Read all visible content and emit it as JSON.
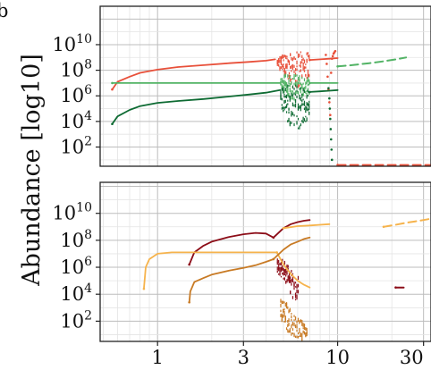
{
  "figure": {
    "panel_letter": "b",
    "ylabel": "Abundance [log10]"
  },
  "chart_data": [
    {
      "type": "scatter",
      "panel": "top",
      "ylabel": "Abundance [log10]",
      "x_scale": "log",
      "y_scale": "log10",
      "xlim": [
        0.48,
        33
      ],
      "ylim": [
        0.5,
        13
      ],
      "y_ticks": [
        2,
        4,
        6,
        8,
        10
      ],
      "y_tick_labels": [
        "10^2",
        "10^4",
        "10^6",
        "10^8",
        "10^10"
      ],
      "grid": true,
      "legend": "none",
      "colors": [
        "#e8503a",
        "#52b365",
        "#0e6b33"
      ],
      "series": [
        {
          "color": "#e8503a",
          "style": "line",
          "x": [
            0.56,
            0.6,
            0.7,
            0.8,
            1.0,
            1.3,
            1.8,
            2.5,
            3.2,
            4.0,
            4.5
          ],
          "y": [
            6.5,
            7.1,
            7.5,
            7.8,
            8.05,
            8.25,
            8.4,
            8.55,
            8.65,
            8.75,
            8.85
          ]
        },
        {
          "color": "#e8503a",
          "style": "chaotic",
          "x": [
            4.6,
            4.9,
            5.2,
            5.5,
            5.8,
            6.1,
            6.4,
            6.7,
            7.0
          ],
          "y_min": [
            8.3,
            7.8,
            7.5,
            6.8,
            6.2,
            6.8,
            7.2,
            7.4,
            7.6
          ],
          "y_max": [
            8.9,
            9.1,
            9.2,
            9.3,
            9.4,
            9.4,
            9.5,
            9.5,
            9.5
          ]
        },
        {
          "color": "#e8503a",
          "style": "line",
          "x": [
            7.0,
            8.0,
            9.0,
            10.0
          ],
          "y": [
            8.8,
            8.85,
            8.9,
            8.95
          ]
        },
        {
          "color": "#e8503a",
          "style": "dots",
          "x": [
            8.6,
            8.7,
            8.8,
            8.9,
            9.0,
            9.1,
            9.2,
            9.3,
            9.4,
            9.5,
            9.6,
            9.7
          ],
          "y": [
            9.2,
            8.5,
            7.5,
            6.5,
            5.5,
            4.5,
            7.8,
            8.9,
            9.1,
            9.3,
            9.4,
            9.5
          ]
        },
        {
          "color": "#e8503a",
          "style": "dash",
          "x": [
            10.0,
            33.0
          ],
          "y": [
            0.6,
            0.6
          ]
        },
        {
          "color": "#52b365",
          "style": "line",
          "x": [
            0.56,
            0.8,
            1.0,
            1.5,
            2.0,
            3.0,
            4.0,
            4.8
          ],
          "y": [
            7.0,
            7.0,
            7.0,
            7.0,
            7.0,
            7.0,
            7.0,
            7.0
          ]
        },
        {
          "color": "#52b365",
          "style": "chaotic",
          "x": [
            4.8,
            5.1,
            5.4,
            5.7,
            6.0,
            6.3,
            6.6,
            7.0
          ],
          "y_min": [
            6.8,
            6.2,
            5.8,
            5.6,
            5.9,
            6.0,
            6.1,
            6.2
          ],
          "y_max": [
            7.3,
            7.6,
            7.7,
            7.7,
            7.6,
            7.5,
            7.4,
            7.3
          ]
        },
        {
          "color": "#52b365",
          "style": "line",
          "x": [
            7.0,
            8.0,
            9.0,
            10.0
          ],
          "y": [
            7.0,
            7.0,
            7.0,
            7.0
          ]
        },
        {
          "color": "#52b365",
          "style": "dash",
          "x": [
            10.0,
            12.0,
            15.0,
            18.0,
            21.0,
            24.0
          ],
          "y": [
            8.3,
            8.4,
            8.55,
            8.7,
            8.85,
            9.0
          ]
        },
        {
          "color": "#0e6b33",
          "style": "line",
          "x": [
            0.56,
            0.6,
            0.7,
            0.8,
            1.0,
            1.3,
            1.8,
            2.5,
            3.2,
            4.0,
            4.8
          ],
          "y": [
            3.8,
            4.4,
            4.9,
            5.2,
            5.45,
            5.6,
            5.75,
            5.95,
            6.1,
            6.25,
            6.45
          ]
        },
        {
          "color": "#0e6b33",
          "style": "chaotic",
          "x": [
            4.8,
            5.1,
            5.4,
            5.7,
            6.0,
            6.3,
            6.6,
            7.0
          ],
          "y_min": [
            5.2,
            4.2,
            3.6,
            3.2,
            3.4,
            3.6,
            4.0,
            4.2
          ],
          "y_max": [
            6.6,
            6.8,
            6.9,
            6.9,
            6.8,
            6.7,
            6.6,
            6.5
          ]
        },
        {
          "color": "#0e6b33",
          "style": "line",
          "x": [
            7.0,
            8.0,
            9.0,
            10.0
          ],
          "y": [
            6.3,
            6.35,
            6.4,
            6.45
          ]
        },
        {
          "color": "#0e6b33",
          "style": "dots",
          "x": [
            8.9,
            9.0,
            9.05,
            9.1,
            9.15,
            9.2,
            9.25,
            9.3
          ],
          "y": [
            6.6,
            5.8,
            5.0,
            4.2,
            3.4,
            2.6,
            1.8,
            1.0
          ]
        }
      ]
    },
    {
      "type": "scatter",
      "panel": "bottom",
      "x_scale": "log",
      "y_scale": "log10",
      "xlim": [
        0.48,
        33
      ],
      "ylim": [
        0.5,
        12.3
      ],
      "x_ticks": [
        1,
        3,
        10,
        30
      ],
      "x_tick_labels": [
        "1",
        "3",
        "10",
        "30"
      ],
      "y_ticks": [
        2,
        4,
        6,
        8,
        10
      ],
      "y_tick_labels": [
        "10^2",
        "10^4",
        "10^6",
        "10^8",
        "10^10"
      ],
      "grid": true,
      "legend": "none",
      "colors": [
        "#8c0d18",
        "#f6b34c",
        "#c87a24"
      ],
      "series": [
        {
          "color": "#8c0d18",
          "style": "line",
          "x": [
            1.5,
            1.6,
            1.8,
            2.0,
            2.5,
            3.0,
            3.5,
            4.0,
            4.4
          ],
          "y": [
            6.2,
            7.1,
            7.6,
            7.9,
            8.25,
            8.45,
            8.55,
            8.5,
            8.2
          ]
        },
        {
          "color": "#8c0d18",
          "style": "line",
          "x": [
            4.4,
            5.0,
            5.5,
            6.0,
            6.5,
            7.0
          ],
          "y": [
            8.2,
            8.9,
            9.2,
            9.35,
            9.45,
            9.5
          ]
        },
        {
          "color": "#8c0d18",
          "style": "chaotic",
          "x": [
            4.6,
            4.9,
            5.2,
            5.5,
            5.8,
            6.1
          ],
          "y_min": [
            5.5,
            5.2,
            4.6,
            3.8,
            3.5,
            4.0
          ],
          "y_max": [
            6.6,
            6.5,
            6.2,
            5.8,
            5.6,
            5.2
          ]
        },
        {
          "color": "#8c0d18",
          "style": "dash",
          "x": [
            21.0,
            22.0,
            23.0,
            24.0
          ],
          "y": [
            4.5,
            4.5,
            4.5,
            4.5
          ]
        },
        {
          "color": "#f6b34c",
          "style": "line",
          "x": [
            0.84,
            0.86,
            0.9,
            1.0,
            1.2,
            1.5,
            2.0,
            3.0,
            4.0,
            4.6
          ],
          "y": [
            4.4,
            6.0,
            6.6,
            7.0,
            7.1,
            7.1,
            7.1,
            7.1,
            7.1,
            7.1
          ]
        },
        {
          "color": "#f6b34c",
          "style": "line",
          "x": [
            4.6,
            5.0,
            5.5,
            6.0,
            6.5,
            7.0
          ],
          "y": [
            7.1,
            6.2,
            5.5,
            5.0,
            4.7,
            4.5
          ]
        },
        {
          "color": "#f6b34c",
          "style": "line",
          "x": [
            5.0,
            6.0,
            7.0,
            8.0,
            9.0
          ],
          "y": [
            8.9,
            9.05,
            9.1,
            9.15,
            9.2
          ]
        },
        {
          "color": "#f6b34c",
          "style": "dash",
          "x": [
            18.0,
            21.0,
            24.0,
            27.0,
            30.0,
            33.0
          ],
          "y": [
            9.0,
            9.15,
            9.3,
            9.4,
            9.5,
            9.6
          ]
        },
        {
          "color": "#c87a24",
          "style": "line",
          "x": [
            1.5,
            1.52,
            1.6,
            1.8,
            2.0,
            2.5,
            3.0,
            3.5,
            4.0,
            4.4
          ],
          "y": [
            3.4,
            4.2,
            4.9,
            5.2,
            5.45,
            5.75,
            5.95,
            6.15,
            6.4,
            6.6
          ]
        },
        {
          "color": "#c87a24",
          "style": "line",
          "x": [
            4.4,
            5.0,
            5.5,
            6.0,
            6.5,
            7.0
          ],
          "y": [
            6.6,
            7.3,
            7.7,
            7.9,
            8.1,
            8.2
          ]
        },
        {
          "color": "#c87a24",
          "style": "chaotic",
          "x": [
            4.8,
            5.1,
            5.4,
            5.7,
            6.0,
            6.3,
            6.6,
            6.8
          ],
          "y_min": [
            2.0,
            1.4,
            1.0,
            0.9,
            0.7,
            0.6,
            0.8,
            1.0
          ],
          "y_max": [
            3.6,
            3.4,
            3.1,
            2.8,
            2.4,
            2.0,
            1.6,
            1.4
          ]
        }
      ]
    }
  ]
}
